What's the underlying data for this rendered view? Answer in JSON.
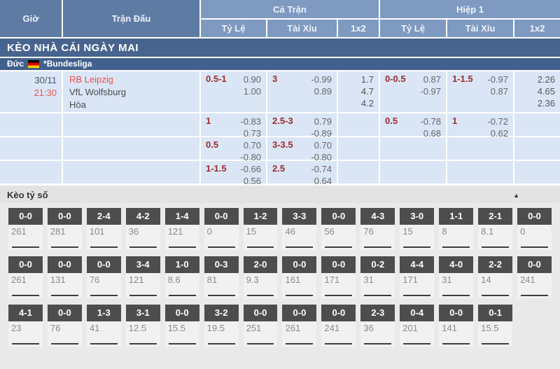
{
  "header": {
    "time_col": "Giờ",
    "match_col": "Trận Đấu",
    "full_time": "Cả Trận",
    "first_half": "Hiệp 1",
    "handicap": "Tỷ Lệ",
    "over_under": "Tài Xỉu",
    "one_x_two": "1x2"
  },
  "banner": {
    "title": "KÈO NHÀ CÁI NGÀY MAI"
  },
  "league": {
    "country": "Đức",
    "name": "*Bundesliga",
    "flag": "germany-flag"
  },
  "match": {
    "date": "30/11",
    "time": "21:30",
    "home_team": "RB Leipzig",
    "away_team": "VfL Wolfsburg",
    "draw_label": "Hòa"
  },
  "odds_rows": [
    {
      "ft_hc_line": "0.5-1",
      "ft_hc_odds": "0.90\n1.00",
      "ft_ou_line": "3",
      "ft_ou_odds": "-0.99\n0.89",
      "ft_1x2": "1.7\n4.7\n4.2",
      "h1_hc_line": "0-0.5",
      "h1_hc_odds": "0.87\n-0.97",
      "h1_ou_line": "1-1.5",
      "h1_ou_odds": "-0.97\n0.87",
      "h1_1x2": "2.26\n4.65\n2.36"
    },
    {
      "ft_hc_line": "1",
      "ft_hc_odds": "-0.83\n0.73",
      "ft_ou_line": "2.5-3",
      "ft_ou_odds": "0.79\n-0.89",
      "ft_1x2": "",
      "h1_hc_line": "0.5",
      "h1_hc_odds": "-0.78\n0.68",
      "h1_ou_line": "1",
      "h1_ou_odds": "-0.72\n0.62",
      "h1_1x2": ""
    },
    {
      "ft_hc_line": "0.5",
      "ft_hc_odds": "0.70\n-0.80",
      "ft_ou_line": "3-3.5",
      "ft_ou_odds": "0.70\n-0.80",
      "ft_1x2": "",
      "h1_hc_line": "",
      "h1_hc_odds": "",
      "h1_ou_line": "",
      "h1_ou_odds": "",
      "h1_1x2": ""
    },
    {
      "ft_hc_line": "1-1.5",
      "ft_hc_odds": "-0.66\n0.56",
      "ft_ou_line": "2.5",
      "ft_ou_odds": "-0.74\n0.64",
      "ft_1x2": "",
      "h1_hc_line": "",
      "h1_hc_odds": "",
      "h1_ou_line": "",
      "h1_ou_odds": "",
      "h1_1x2": ""
    }
  ],
  "score_section": {
    "title": "Kèo tỷ số",
    "collapse_icon": "▲",
    "rows": [
      [
        {
          "score": "0-0",
          "odds": "261"
        },
        {
          "score": "0-0",
          "odds": "281"
        },
        {
          "score": "2-4",
          "odds": "101"
        },
        {
          "score": "4-2",
          "odds": "36"
        },
        {
          "score": "1-4",
          "odds": "121"
        },
        {
          "score": "0-0",
          "odds": "0"
        },
        {
          "score": "1-2",
          "odds": "15"
        },
        {
          "score": "3-3",
          "odds": "46"
        },
        {
          "score": "0-0",
          "odds": "56"
        },
        {
          "score": "4-3",
          "odds": "76"
        },
        {
          "score": "3-0",
          "odds": "15"
        },
        {
          "score": "1-1",
          "odds": "8"
        },
        {
          "score": "2-1",
          "odds": "8.1"
        },
        {
          "score": "0-0",
          "odds": "0"
        }
      ],
      [
        {
          "score": "0-0",
          "odds": "261"
        },
        {
          "score": "0-0",
          "odds": "131"
        },
        {
          "score": "0-0",
          "odds": "76"
        },
        {
          "score": "3-4",
          "odds": "121"
        },
        {
          "score": "1-0",
          "odds": "8.6"
        },
        {
          "score": "0-3",
          "odds": "81"
        },
        {
          "score": "2-0",
          "odds": "9.3"
        },
        {
          "score": "0-0",
          "odds": "161"
        },
        {
          "score": "0-0",
          "odds": "171"
        },
        {
          "score": "0-2",
          "odds": "31"
        },
        {
          "score": "4-4",
          "odds": "171"
        },
        {
          "score": "4-0",
          "odds": "31"
        },
        {
          "score": "2-2",
          "odds": "14"
        },
        {
          "score": "0-0",
          "odds": "241"
        }
      ],
      [
        {
          "score": "4-1",
          "odds": "23"
        },
        {
          "score": "0-0",
          "odds": "76"
        },
        {
          "score": "1-3",
          "odds": "41"
        },
        {
          "score": "3-1",
          "odds": "12.5"
        },
        {
          "score": "0-0",
          "odds": "15.5"
        },
        {
          "score": "3-2",
          "odds": "19.5"
        },
        {
          "score": "0-0",
          "odds": "251"
        },
        {
          "score": "0-0",
          "odds": "261"
        },
        {
          "score": "0-0",
          "odds": "241"
        },
        {
          "score": "2-3",
          "odds": "36"
        },
        {
          "score": "0-4",
          "odds": "201"
        },
        {
          "score": "0-0",
          "odds": "141"
        },
        {
          "score": "0-1",
          "odds": "15.5"
        }
      ]
    ]
  }
}
